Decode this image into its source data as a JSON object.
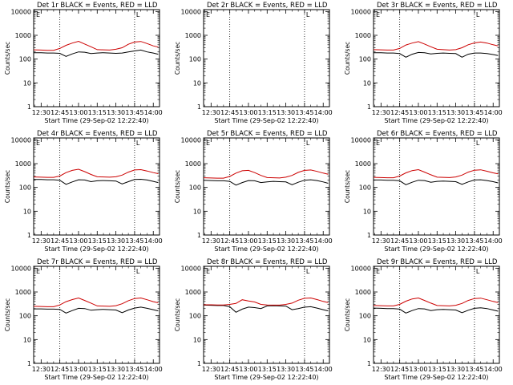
{
  "panel_titles": [
    "Det 1r BLACK = Events, RED = LLD",
    "Det 2r BLACK = Events, RED = LLD",
    "Det 3r BLACK = Events, RED = LLD",
    "Det 4r BLACK = Events, RED = LLD",
    "Det 5r BLACK = Events, RED = LLD",
    "Det 6r BLACK = Events, RED = LLD",
    "Det 7r BLACK = Events, RED = LLD",
    "Det 8r BLACK = Events, RED = LLD",
    "Det 9r BLACK = Events, RED = LLD"
  ],
  "xlabel": "Start Time (29-Sep-02 12:22:40)",
  "ylabel": "Counts/sec",
  "x_tick_labels": [
    "12:30",
    "12:45",
    "13:00",
    "13:15",
    "13:30",
    "13:45",
    "14:00"
  ],
  "y_tick_labels": [
    "1",
    "10",
    "100",
    "1000",
    "10000"
  ],
  "flag_labels": [
    "E",
    "L"
  ],
  "colors": {
    "events": "#000000",
    "lld": "#cc0000",
    "axes": "#000000"
  },
  "chart_data": [
    {
      "type": "line",
      "title": "Det 1r BLACK = Events, RED = LLD",
      "xlabel": "Start Time (29-Sep-02 12:22:40)",
      "ylabel": "Counts/sec",
      "x_range": [
        "12:24",
        "14:05"
      ],
      "ylim": [
        1,
        12000
      ],
      "yscale": "log",
      "x": [
        "12:24",
        "12:30",
        "12:35",
        "12:40",
        "12:45",
        "12:50",
        "12:55",
        "13:00",
        "13:05",
        "13:10",
        "13:15",
        "13:20",
        "13:25",
        "13:30",
        "13:35",
        "13:40",
        "13:45",
        "13:50",
        "13:55",
        "14:00",
        "14:04"
      ],
      "series": [
        {
          "name": "BLACK = Events",
          "values": [
            185,
            185,
            180,
            180,
            175,
            130,
            165,
            200,
            195,
            170,
            180,
            185,
            180,
            175,
            180,
            200,
            220,
            240,
            200,
            180,
            160
          ]
        },
        {
          "name": "RED = LLD",
          "values": [
            245,
            240,
            235,
            235,
            280,
            380,
            470,
            560,
            430,
            330,
            250,
            245,
            240,
            260,
            300,
            420,
            520,
            550,
            450,
            360,
            320
          ]
        }
      ],
      "vlines": [
        "12:45",
        "13:45"
      ],
      "flags": [
        "E",
        "L"
      ]
    },
    {
      "type": "line",
      "title": "Det 2r BLACK = Events, RED = LLD",
      "xlabel": "Start Time (29-Sep-02 12:22:40)",
      "ylabel": "Counts/sec",
      "x_range": [
        "12:24",
        "14:05"
      ],
      "ylim": [
        1,
        12000
      ],
      "yscale": "log",
      "x": [],
      "series": [],
      "vlines": [
        "12:45",
        "13:45"
      ],
      "flags": [
        "E",
        "L"
      ]
    },
    {
      "type": "line",
      "title": "Det 3r BLACK = Events, RED = LLD",
      "xlabel": "Start Time (29-Sep-02 12:22:40)",
      "ylabel": "Counts/sec",
      "x_range": [
        "12:24",
        "14:05"
      ],
      "ylim": [
        1,
        12000
      ],
      "yscale": "log",
      "x": [
        "12:24",
        "12:30",
        "12:35",
        "12:40",
        "12:45",
        "12:50",
        "12:55",
        "13:00",
        "13:05",
        "13:10",
        "13:15",
        "13:20",
        "13:25",
        "13:30",
        "13:35",
        "13:40",
        "13:45",
        "13:50",
        "13:55",
        "14:00",
        "14:04"
      ],
      "series": [
        {
          "name": "BLACK = Events",
          "values": [
            185,
            185,
            180,
            180,
            170,
            120,
            160,
            190,
            185,
            165,
            175,
            180,
            175,
            170,
            120,
            160,
            180,
            180,
            170,
            155,
            140
          ]
        },
        {
          "name": "RED = LLD",
          "values": [
            250,
            245,
            240,
            240,
            280,
            390,
            470,
            540,
            430,
            330,
            260,
            250,
            240,
            250,
            300,
            400,
            480,
            520,
            470,
            400,
            360
          ]
        }
      ],
      "vlines": [
        "12:45",
        "13:45"
      ],
      "flags": [
        "E",
        "L"
      ]
    },
    {
      "type": "line",
      "title": "Det 4r BLACK = Events, RED = LLD",
      "xlabel": "Start Time (29-Sep-02 12:22:40)",
      "ylabel": "Counts/sec",
      "x_range": [
        "12:24",
        "14:05"
      ],
      "ylim": [
        1,
        12000
      ],
      "yscale": "log",
      "x": [
        "12:24",
        "12:30",
        "12:35",
        "12:40",
        "12:45",
        "12:50",
        "12:55",
        "13:00",
        "13:05",
        "13:10",
        "13:15",
        "13:20",
        "13:25",
        "13:30",
        "13:35",
        "13:40",
        "13:45",
        "13:50",
        "13:55",
        "14:00",
        "14:04"
      ],
      "series": [
        {
          "name": "BLACK = Events",
          "values": [
            215,
            215,
            210,
            210,
            200,
            135,
            170,
            210,
            205,
            175,
            190,
            195,
            190,
            185,
            140,
            175,
            215,
            220,
            205,
            180,
            160
          ]
        },
        {
          "name": "RED = LLD",
          "values": [
            275,
            270,
            265,
            265,
            300,
            420,
            520,
            580,
            460,
            350,
            280,
            275,
            270,
            280,
            330,
            440,
            540,
            560,
            490,
            420,
            380
          ]
        }
      ],
      "vlines": [
        "12:45",
        "13:45"
      ],
      "flags": [
        "E",
        "L"
      ]
    },
    {
      "type": "line",
      "title": "Det 5r BLACK = Events, RED = LLD",
      "xlabel": "Start Time (29-Sep-02 12:22:40)",
      "ylabel": "Counts/sec",
      "x_range": [
        "12:24",
        "14:05"
      ],
      "ylim": [
        1,
        12000
      ],
      "yscale": "log",
      "x": [
        "12:24",
        "12:30",
        "12:35",
        "12:40",
        "12:45",
        "12:50",
        "12:55",
        "13:00",
        "13:05",
        "13:10",
        "13:15",
        "13:20",
        "13:25",
        "13:30",
        "13:35",
        "13:40",
        "13:45",
        "13:50",
        "13:55",
        "14:00",
        "14:04"
      ],
      "series": [
        {
          "name": "BLACK = Events",
          "values": [
            200,
            195,
            190,
            190,
            180,
            125,
            160,
            195,
            190,
            160,
            170,
            180,
            175,
            170,
            130,
            165,
            200,
            210,
            195,
            170,
            150
          ]
        },
        {
          "name": "RED = LLD",
          "values": [
            255,
            250,
            245,
            245,
            290,
            400,
            500,
            520,
            420,
            320,
            260,
            255,
            250,
            270,
            320,
            430,
            520,
            540,
            470,
            400,
            360
          ]
        }
      ],
      "vlines": [
        "12:45",
        "13:45"
      ],
      "flags": [
        "E",
        "L"
      ]
    },
    {
      "type": "line",
      "title": "Det 6r BLACK = Events, RED = LLD",
      "xlabel": "Start Time (29-Sep-02 12:22:40)",
      "ylabel": "Counts/sec",
      "x_range": [
        "12:24",
        "14:05"
      ],
      "ylim": [
        1,
        12000
      ],
      "yscale": "log",
      "x": [
        "12:24",
        "12:30",
        "12:35",
        "12:40",
        "12:45",
        "12:50",
        "12:55",
        "13:00",
        "13:05",
        "13:10",
        "13:15",
        "13:20",
        "13:25",
        "13:30",
        "13:35",
        "13:40",
        "13:45",
        "13:50",
        "13:55",
        "14:00",
        "14:04"
      ],
      "series": [
        {
          "name": "BLACK = Events",
          "values": [
            205,
            205,
            200,
            200,
            190,
            130,
            165,
            200,
            195,
            165,
            180,
            185,
            180,
            175,
            135,
            170,
            205,
            210,
            195,
            175,
            155
          ]
        },
        {
          "name": "RED = LLD",
          "values": [
            265,
            260,
            255,
            255,
            300,
            410,
            510,
            560,
            440,
            340,
            270,
            265,
            260,
            275,
            330,
            440,
            530,
            550,
            480,
            410,
            370
          ]
        }
      ],
      "vlines": [
        "12:45",
        "13:45"
      ],
      "flags": [
        "E",
        "L"
      ]
    },
    {
      "type": "line",
      "title": "Det 7r BLACK = Events, RED = LLD",
      "xlabel": "Start Time (29-Sep-02 12:22:40)",
      "ylabel": "Counts/sec",
      "x_range": [
        "12:24",
        "14:05"
      ],
      "ylim": [
        1,
        12000
      ],
      "yscale": "log",
      "x": [
        "12:24",
        "12:30",
        "12:35",
        "12:40",
        "12:45",
        "12:50",
        "12:55",
        "13:00",
        "13:05",
        "13:10",
        "13:15",
        "13:20",
        "13:25",
        "13:30",
        "13:35",
        "13:40",
        "13:45",
        "13:50",
        "13:55",
        "14:00",
        "14:04"
      ],
      "series": [
        {
          "name": "BLACK = Events",
          "values": [
            195,
            195,
            190,
            190,
            185,
            130,
            165,
            205,
            200,
            170,
            180,
            185,
            180,
            175,
            135,
            175,
            210,
            230,
            205,
            180,
            160
          ]
        },
        {
          "name": "RED = LLD",
          "values": [
            250,
            245,
            240,
            240,
            285,
            390,
            480,
            560,
            440,
            340,
            260,
            255,
            250,
            265,
            320,
            430,
            530,
            560,
            470,
            390,
            350
          ]
        }
      ],
      "vlines": [
        "12:45",
        "13:45"
      ],
      "flags": [
        "E",
        "L"
      ]
    },
    {
      "type": "line",
      "title": "Det 8r BLACK = Events, RED = LLD",
      "xlabel": "Start Time (29-Sep-02 12:22:40)",
      "ylabel": "Counts/sec",
      "x_range": [
        "12:24",
        "14:05"
      ],
      "ylim": [
        1,
        12000
      ],
      "yscale": "log",
      "x": [
        "12:24",
        "12:30",
        "12:35",
        "12:40",
        "12:45",
        "12:50",
        "12:55",
        "13:00",
        "13:05",
        "13:10",
        "13:15",
        "13:20",
        "13:25",
        "13:30",
        "13:35",
        "13:40",
        "13:45",
        "13:50",
        "13:55",
        "14:00",
        "14:04"
      ],
      "series": [
        {
          "name": "BLACK = Events",
          "values": [
            280,
            275,
            270,
            270,
            240,
            140,
            190,
            230,
            220,
            200,
            260,
            265,
            260,
            255,
            180,
            200,
            230,
            240,
            210,
            180,
            160
          ]
        },
        {
          "name": "RED = LLD",
          "values": [
            290,
            290,
            285,
            285,
            300,
            330,
            470,
            420,
            380,
            300,
            285,
            280,
            280,
            300,
            340,
            450,
            540,
            560,
            480,
            400,
            360
          ]
        }
      ],
      "vlines": [
        "12:45",
        "13:45"
      ],
      "flags": [
        "E",
        "L"
      ]
    },
    {
      "type": "line",
      "title": "Det 9r BLACK = Events, RED = LLD",
      "xlabel": "Start Time (29-Sep-02 12:22:40)",
      "ylabel": "Counts/sec",
      "x_range": [
        "12:24",
        "14:05"
      ],
      "ylim": [
        1,
        12000
      ],
      "yscale": "log",
      "x": [
        "12:24",
        "12:30",
        "12:35",
        "12:40",
        "12:45",
        "12:50",
        "12:55",
        "13:00",
        "13:05",
        "13:10",
        "13:15",
        "13:20",
        "13:25",
        "13:30",
        "13:35",
        "13:40",
        "13:45",
        "13:50",
        "13:55",
        "14:00",
        "14:04"
      ],
      "series": [
        {
          "name": "BLACK = Events",
          "values": [
            210,
            205,
            200,
            200,
            190,
            130,
            165,
            200,
            195,
            165,
            180,
            185,
            180,
            175,
            135,
            170,
            205,
            215,
            200,
            175,
            155
          ]
        },
        {
          "name": "RED = LLD",
          "values": [
            270,
            265,
            260,
            260,
            300,
            410,
            510,
            560,
            440,
            340,
            270,
            265,
            260,
            275,
            330,
            440,
            530,
            550,
            470,
            400,
            360
          ]
        }
      ],
      "vlines": [
        "12:45",
        "13:45"
      ],
      "flags": [
        "E",
        "L"
      ]
    }
  ]
}
